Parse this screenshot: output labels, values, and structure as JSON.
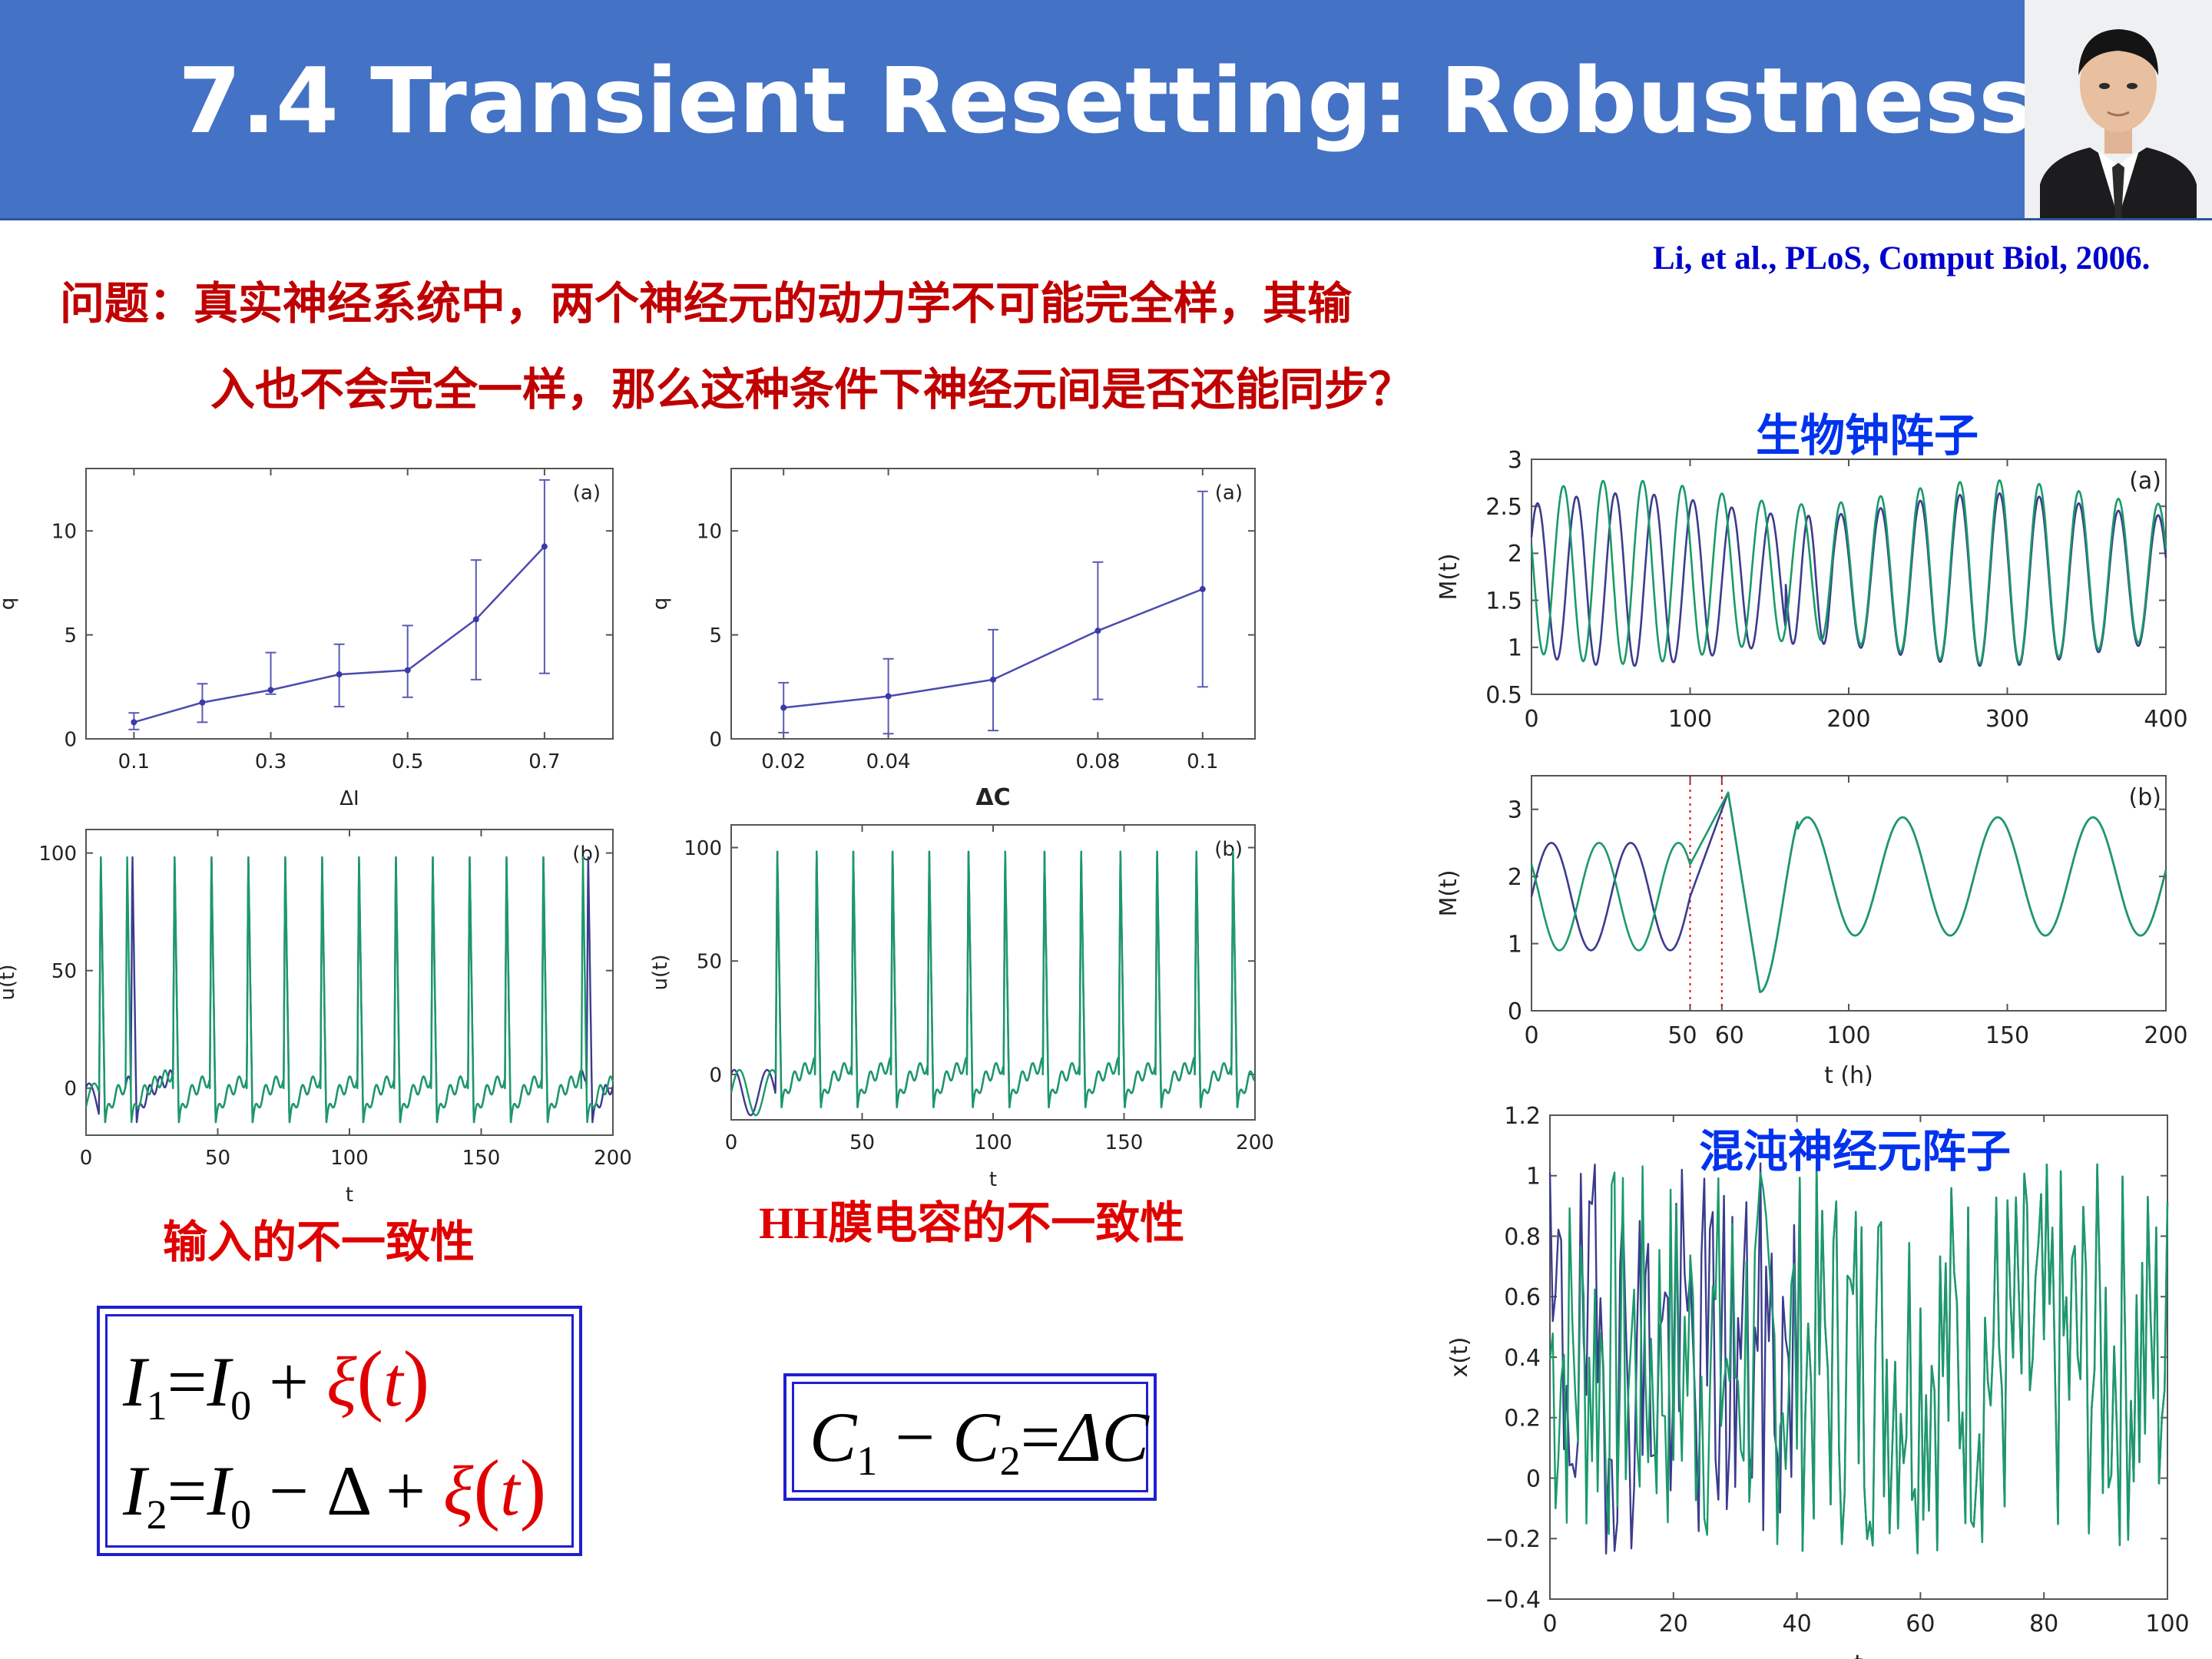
{
  "header": {
    "title": "7.4 Transient Resetting: Robustness",
    "citation": "Li, et al., PLoS, Comput Biol, 2006."
  },
  "question": {
    "line1": "问题：真实神经系统中，两个神经元的动力学不可能完全样，其输",
    "line2": "入也不会完全一样，那么这种条件下神经元间是否还能同步？"
  },
  "captions": {
    "input": "输入的不一致性",
    "capacitance": "HH膜电容的不一致性"
  },
  "panel_titles": {
    "clock": "生物钟阵子",
    "chaos": "混沌神经元阵子"
  },
  "equations": {
    "input_eq1": {
      "I1": "I",
      "sub1": "1",
      "eq": "=",
      "I0": "I",
      "sub0": "0",
      "plus": "+",
      "xi": "ξ",
      "t": "t"
    },
    "input_eq2": {
      "I2": "I",
      "sub2": "2",
      "eq": "=",
      "I0": "I",
      "sub0": "0",
      "minus": "−",
      "delta": "Δ",
      "plus": "+",
      "xi": "ξ",
      "t": "t"
    },
    "cap_eq": {
      "C1": "C",
      "sub1": "1",
      "minus": "−",
      "C2": "C",
      "sub2": "2",
      "eq": "=",
      "rhs": "ΔC"
    }
  },
  "colors": {
    "banner": "#4472c4",
    "series_green": "#1a9a6a",
    "series_navy": "#3b3b8e",
    "red_marker": "#e00000"
  },
  "chart_data": [
    {
      "id": "q_vs_dI",
      "type": "line",
      "panel_label": "(a)",
      "xlabel": "ΔI",
      "ylabel": "q",
      "xlim": [
        0.03,
        0.8
      ],
      "ylim": [
        0,
        13
      ],
      "xticks": [
        0.1,
        0.3,
        0.5,
        0.7
      ],
      "yticks": [
        0,
        5,
        10
      ],
      "x": [
        0.1,
        0.2,
        0.3,
        0.4,
        0.5,
        0.6,
        0.7
      ],
      "y": [
        0.8,
        1.75,
        2.35,
        3.1,
        3.3,
        5.75,
        9.25
      ],
      "err_low": [
        0.45,
        0.8,
        2.15,
        1.55,
        2.0,
        2.85,
        3.15
      ],
      "err_high": [
        1.25,
        2.65,
        4.15,
        4.55,
        5.45,
        8.6,
        12.45
      ]
    },
    {
      "id": "q_vs_dC",
      "type": "line",
      "panel_label": "(a)",
      "xlabel": "ΔC",
      "ylabel": "q",
      "xlim": [
        0.01,
        0.11
      ],
      "ylim": [
        0,
        13
      ],
      "xticks": [
        0.02,
        0.04,
        0.08,
        0.1
      ],
      "yticks": [
        0,
        5,
        10
      ],
      "x": [
        0.02,
        0.04,
        0.06,
        0.08,
        0.1
      ],
      "y": [
        1.5,
        2.05,
        2.85,
        5.2,
        7.2
      ],
      "err_low": [
        0.3,
        0.25,
        0.4,
        1.9,
        2.5
      ],
      "err_high": [
        2.7,
        3.85,
        5.25,
        8.5,
        11.9
      ]
    },
    {
      "id": "u_spikes_input",
      "type": "line",
      "panel_label": "(b)",
      "xlabel": "t",
      "ylabel": "u(t)",
      "xlim": [
        0,
        200
      ],
      "ylim": [
        -20,
        110
      ],
      "xticks": [
        0,
        50,
        100,
        150,
        200
      ],
      "yticks": [
        0,
        50,
        100
      ],
      "series": [
        {
          "spike_times": [
            5,
            15,
            33,
            47,
            61,
            75,
            89,
            103,
            117,
            131,
            145,
            159,
            173,
            188
          ]
        },
        {
          "spike_times": [
            5,
            17,
            33,
            47,
            61,
            75,
            89,
            103,
            117,
            131,
            145,
            159,
            173,
            190
          ]
        }
      ]
    },
    {
      "id": "u_spikes_cap",
      "type": "line",
      "panel_label": "(b)",
      "xlabel": "t",
      "ylabel": "u(t)",
      "xlim": [
        0,
        200
      ],
      "ylim": [
        -20,
        110
      ],
      "xticks": [
        0,
        50,
        100,
        150,
        200
      ],
      "yticks": [
        0,
        50,
        100
      ],
      "series": [
        {
          "spike_times": [
            17,
            32,
            46,
            61,
            75,
            90,
            104,
            119,
            133,
            148,
            162,
            177,
            191
          ]
        },
        {
          "spike_times": [
            17,
            32,
            46,
            61,
            75,
            90,
            104,
            119,
            133,
            148,
            162,
            177,
            191
          ]
        }
      ]
    },
    {
      "id": "clock_free",
      "type": "line",
      "panel_label": "(a)",
      "xlabel": "",
      "ylabel": "M(t)",
      "xlim": [
        0,
        400
      ],
      "ylim": [
        0.5,
        3
      ],
      "xticks": [
        0,
        100,
        200,
        300,
        400
      ],
      "yticks": [
        0.5,
        1,
        1.5,
        2,
        2.5,
        3
      ],
      "series": [
        {
          "period": 24.5,
          "phase": 0.6,
          "mean": 1.72,
          "amp_start": 0.8,
          "amp_end": 0.8
        },
        {
          "period": 25,
          "phase": 2.8,
          "mean": 1.8,
          "amp_start": 0.85,
          "amp_end": 0.8
        }
      ]
    },
    {
      "id": "clock_reset",
      "type": "line",
      "panel_label": "(b)",
      "xlabel": "t (h)",
      "ylabel": "M(t)",
      "xlim": [
        0,
        200
      ],
      "ylim": [
        0,
        3.5
      ],
      "xticks": [
        0,
        50,
        60,
        100,
        150,
        200
      ],
      "xtick_labels": [
        "0",
        "50",
        "60",
        "100",
        "150",
        "200"
      ],
      "yticks": [
        0,
        1,
        2,
        3
      ],
      "markers": [
        50,
        60
      ],
      "series": [
        {
          "period": 25,
          "phase": 0,
          "mean": 1.7,
          "amp": 0.8
        },
        {
          "period": 25,
          "phase": 2.5,
          "mean": 1.7,
          "amp": 0.8
        }
      ]
    },
    {
      "id": "chaos",
      "type": "line",
      "panel_label": "",
      "xlabel": "t",
      "ylabel": "x(t)",
      "xlim": [
        0,
        100
      ],
      "ylim": [
        -0.4,
        1.2
      ],
      "xticks": [
        0,
        20,
        40,
        60,
        80,
        100
      ],
      "yticks": [
        -0.4,
        -0.2,
        0,
        0.2,
        0.4,
        0.6,
        0.8,
        1,
        1.2
      ],
      "ytick_labels": [
        "−0.4",
        "−0.2",
        "0",
        "0.2",
        "0.4",
        "0.6",
        "0.8",
        "1",
        "1.2"
      ],
      "series": [
        {
          "seed": 7
        },
        {
          "seed": 19,
          "sync_after": 40
        }
      ]
    }
  ]
}
